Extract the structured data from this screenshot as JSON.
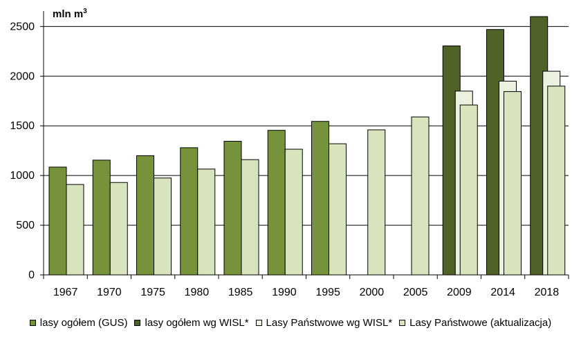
{
  "chart_data": {
    "type": "bar",
    "unit_label": "mln m",
    "unit_sup": "3",
    "categories": [
      "1967",
      "1970",
      "1975",
      "1980",
      "1985",
      "1990",
      "1995",
      "2000",
      "2005",
      "2009",
      "2014",
      "2018"
    ],
    "ylim": [
      0,
      2600
    ],
    "yticks": [
      "0",
      "500",
      "1000",
      "1500",
      "2000",
      "2500"
    ],
    "grid": true,
    "legend_position": "bottom",
    "series": [
      {
        "name": "lasy ogółem (GUS)",
        "color": "#76933c",
        "values": [
          1085,
          1155,
          1200,
          1280,
          1345,
          1455,
          1545,
          null,
          null,
          null,
          null,
          null
        ]
      },
      {
        "name": "lasy ogółem wg WISL*",
        "color": "#4f6228",
        "values": [
          null,
          null,
          null,
          null,
          null,
          null,
          null,
          null,
          null,
          2305,
          2470,
          2600
        ]
      },
      {
        "name": "Lasy Państwowe wg WISL*",
        "color": "#ebf1de",
        "values": [
          null,
          null,
          null,
          null,
          null,
          null,
          null,
          null,
          null,
          1850,
          1950,
          2050
        ]
      },
      {
        "name": "Lasy Państwowe (aktualizacja)",
        "color": "#d7e4bd",
        "values": [
          910,
          930,
          975,
          1065,
          1160,
          1265,
          1320,
          1460,
          1590,
          1710,
          1845,
          1900
        ]
      }
    ]
  }
}
